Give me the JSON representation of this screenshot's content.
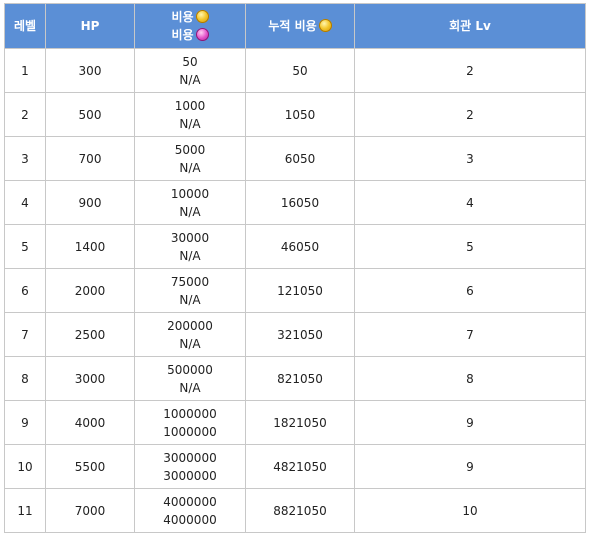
{
  "headers": {
    "level": "레벨",
    "hp": "HP",
    "cost_line1": "비용",
    "cost_line2": "비용",
    "cumulative_cost": "누적 비용",
    "hall_level": "회관 Lv"
  },
  "icons": {
    "cost_gold": "gold-coin-icon",
    "cost_gem": "pink-gem-icon",
    "cumulative_gold": "gold-coin-icon"
  },
  "colors": {
    "header_bg": "#5b8fd6",
    "header_text": "#ffffff",
    "border": "#c8c8c8"
  },
  "rows": [
    {
      "level": "1",
      "hp": "300",
      "cost_gold": "50",
      "cost_gem": "N/A",
      "cumulative": "50",
      "hall_lv": "2"
    },
    {
      "level": "2",
      "hp": "500",
      "cost_gold": "1000",
      "cost_gem": "N/A",
      "cumulative": "1050",
      "hall_lv": "2"
    },
    {
      "level": "3",
      "hp": "700",
      "cost_gold": "5000",
      "cost_gem": "N/A",
      "cumulative": "6050",
      "hall_lv": "3"
    },
    {
      "level": "4",
      "hp": "900",
      "cost_gold": "10000",
      "cost_gem": "N/A",
      "cumulative": "16050",
      "hall_lv": "4"
    },
    {
      "level": "5",
      "hp": "1400",
      "cost_gold": "30000",
      "cost_gem": "N/A",
      "cumulative": "46050",
      "hall_lv": "5"
    },
    {
      "level": "6",
      "hp": "2000",
      "cost_gold": "75000",
      "cost_gem": "N/A",
      "cumulative": "121050",
      "hall_lv": "6"
    },
    {
      "level": "7",
      "hp": "2500",
      "cost_gold": "200000",
      "cost_gem": "N/A",
      "cumulative": "321050",
      "hall_lv": "7"
    },
    {
      "level": "8",
      "hp": "3000",
      "cost_gold": "500000",
      "cost_gem": "N/A",
      "cumulative": "821050",
      "hall_lv": "8"
    },
    {
      "level": "9",
      "hp": "4000",
      "cost_gold": "1000000",
      "cost_gem": "1000000",
      "cumulative": "1821050",
      "hall_lv": "9"
    },
    {
      "level": "10",
      "hp": "5500",
      "cost_gold": "3000000",
      "cost_gem": "3000000",
      "cumulative": "4821050",
      "hall_lv": "9"
    },
    {
      "level": "11",
      "hp": "7000",
      "cost_gold": "4000000",
      "cost_gem": "4000000",
      "cumulative": "8821050",
      "hall_lv": "10"
    }
  ]
}
